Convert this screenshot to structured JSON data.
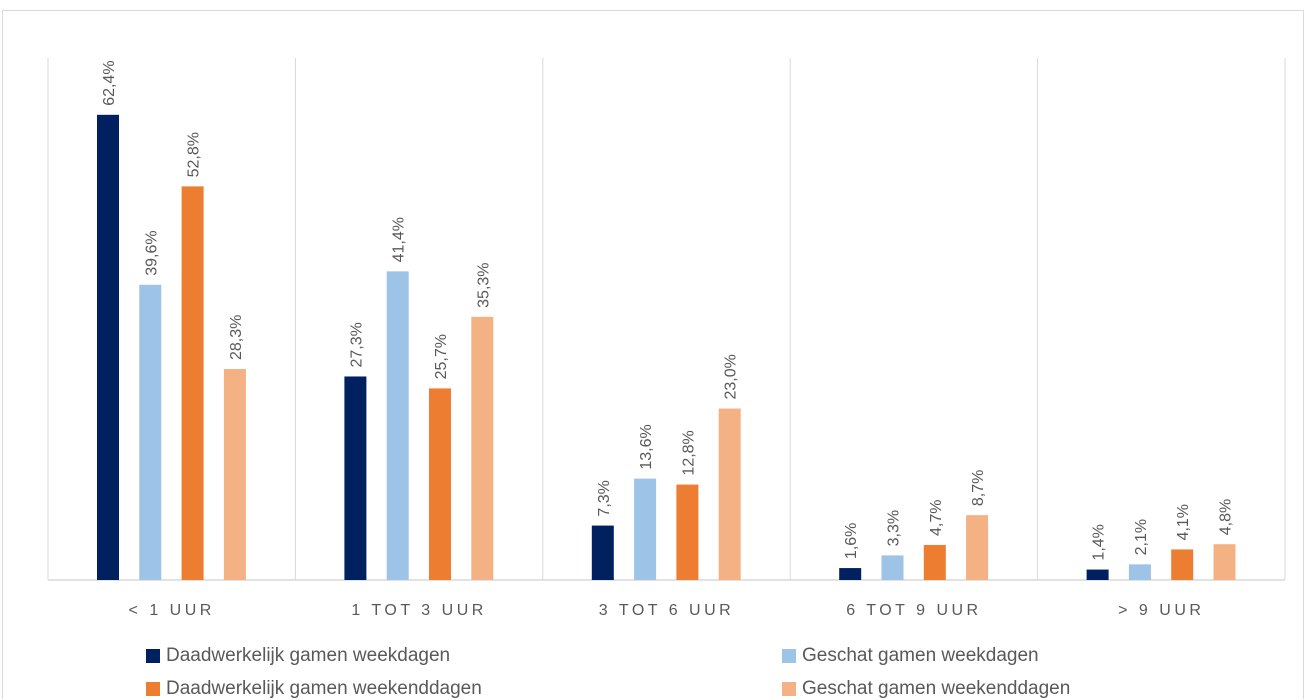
{
  "chart_data": {
    "type": "bar",
    "title": "",
    "xlabel": "",
    "ylabel": "",
    "ylim": [
      0,
      65
    ],
    "grid": "vertical category separators",
    "legend_position": "bottom",
    "categories": [
      "< 1 UUR",
      "1 TOT 3 UUR",
      "3 TOT 6 UUR",
      "6 TOT 9 UUR",
      "> 9 UUR"
    ],
    "series": [
      {
        "name": "Daadwerkelijk gamen weekdagen",
        "color": "#002060",
        "values": [
          62.4,
          27.3,
          7.3,
          1.6,
          1.4
        ],
        "labels": [
          "62,4%",
          "27,3%",
          "7,3%",
          "1,6%",
          "1,4%"
        ]
      },
      {
        "name": "Geschat gamen weekdagen",
        "color": "#9dc3e6",
        "values": [
          39.6,
          41.4,
          13.6,
          3.3,
          2.1
        ],
        "labels": [
          "39,6%",
          "41,4%",
          "13,6%",
          "3,3%",
          "2,1%"
        ]
      },
      {
        "name": "Daadwerkelijk gamen weekenddagen",
        "color": "#ed7d31",
        "values": [
          52.8,
          25.7,
          12.8,
          4.7,
          4.1
        ],
        "labels": [
          "52,8%",
          "25,7%",
          "12,8%",
          "4,7%",
          "4,1%"
        ]
      },
      {
        "name": "Geschat gamen weekenddagen",
        "color": "#f4b183",
        "values": [
          28.3,
          35.3,
          23.0,
          8.7,
          4.8
        ],
        "labels": [
          "28,3%",
          "35,3%",
          "23,0%",
          "8,7%",
          "4,8%"
        ]
      }
    ]
  }
}
